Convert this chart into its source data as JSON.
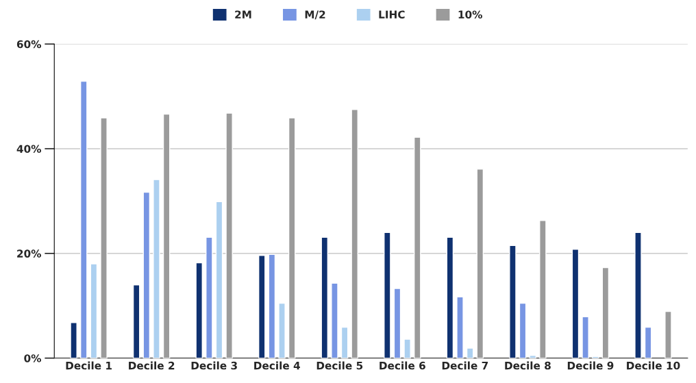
{
  "chart_data": {
    "type": "bar",
    "categories": [
      "Decile 1",
      "Decile 2",
      "Decile 3",
      "Decile 4",
      "Decile 5",
      "Decile 6",
      "Decile 7",
      "Decile 8",
      "Decile 9",
      "Decile 10"
    ],
    "series": [
      {
        "name": "2M",
        "color": "#0f3170",
        "values": [
          6.8,
          14.0,
          18.2,
          19.6,
          23.1,
          24.0,
          23.1,
          21.5,
          20.8,
          24.0
        ]
      },
      {
        "name": "M/2",
        "color": "#7795e3",
        "values": [
          52.9,
          31.7,
          23.1,
          19.8,
          14.3,
          13.3,
          11.7,
          10.5,
          7.9,
          5.9
        ]
      },
      {
        "name": "LIHC",
        "color": "#acd0f0",
        "values": [
          18.0,
          34.1,
          29.9,
          10.5,
          5.9,
          3.6,
          1.9,
          0.5,
          0.3,
          null
        ]
      },
      {
        "name": "10%",
        "color": "#9b9b9b",
        "values": [
          45.9,
          46.6,
          46.8,
          45.9,
          47.5,
          42.2,
          36.1,
          26.3,
          17.3,
          8.9
        ]
      }
    ],
    "ylim": [
      0,
      60
    ],
    "yticks": [
      {
        "value": 0,
        "label": "0%"
      },
      {
        "value": 20,
        "label": "20%"
      },
      {
        "value": 40,
        "label": "40%"
      },
      {
        "value": 60,
        "label": "60%"
      }
    ],
    "grid": "y",
    "legend": "top"
  }
}
